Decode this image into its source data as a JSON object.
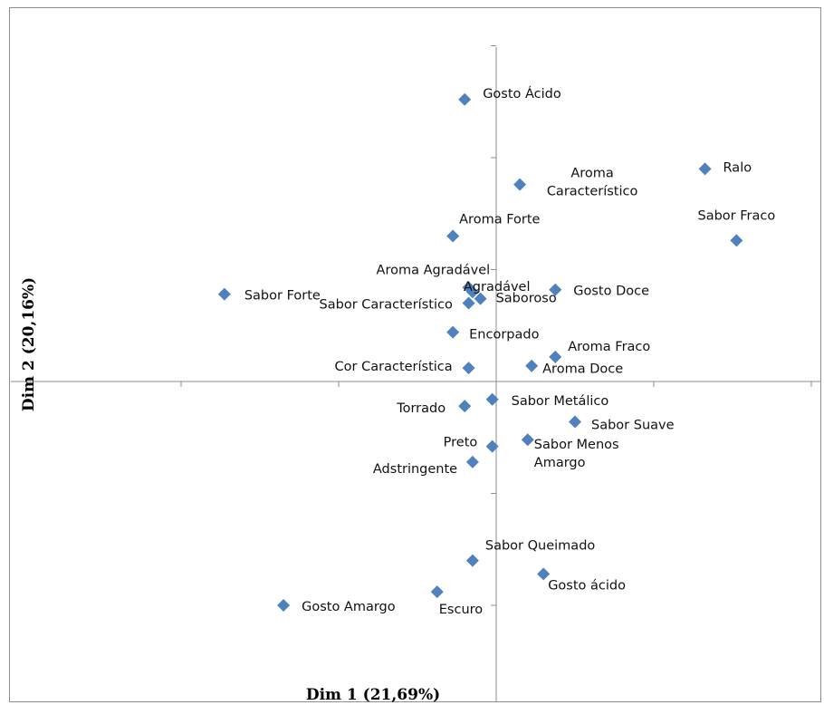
{
  "chart_data": {
    "type": "scatter",
    "xlabel": "Dim 1 (21,69%)",
    "ylabel": "Dim 2 (20,16%)",
    "series_color": "#4f81bd",
    "points": [
      {
        "label": "Gosto Ácido",
        "x": -0.08,
        "y": 1.26
      },
      {
        "label": "Aroma Característico",
        "x": 0.06,
        "y": 0.88
      },
      {
        "label": "Ralo",
        "x": 0.53,
        "y": 0.95
      },
      {
        "label": "Aroma Forte",
        "x": -0.11,
        "y": 0.65
      },
      {
        "label": "Sabor Fraco",
        "x": 0.61,
        "y": 0.63
      },
      {
        "label": "Aroma Agradável",
        "x": -0.07,
        "y": 0.42
      },
      {
        "label": "Agradável",
        "x": -0.06,
        "y": 0.4
      },
      {
        "label": "Sabor Forte",
        "x": -0.69,
        "y": 0.39
      },
      {
        "label": "Gosto Doce",
        "x": 0.15,
        "y": 0.41
      },
      {
        "label": "Saboroso",
        "x": -0.04,
        "y": 0.37
      },
      {
        "label": "Sabor Característico",
        "x": -0.07,
        "y": 0.35
      },
      {
        "label": "Encorpado",
        "x": -0.11,
        "y": 0.22
      },
      {
        "label": "Aroma Fraco",
        "x": 0.15,
        "y": 0.11
      },
      {
        "label": "Cor Característica",
        "x": -0.07,
        "y": 0.06
      },
      {
        "label": "Aroma Doce",
        "x": 0.09,
        "y": 0.07
      },
      {
        "label": "Sabor Metálico",
        "x": -0.01,
        "y": -0.08
      },
      {
        "label": "Torrado",
        "x": -0.08,
        "y": -0.11
      },
      {
        "label": "Sabor Suave",
        "x": 0.2,
        "y": -0.18
      },
      {
        "label": "Sabor Menos Amargo",
        "x": 0.08,
        "y": -0.26
      },
      {
        "label": "Preto",
        "x": -0.01,
        "y": -0.29
      },
      {
        "label": "Adstringente",
        "x": -0.06,
        "y": -0.36
      },
      {
        "label": "Sabor Queimado",
        "x": -0.06,
        "y": -0.8
      },
      {
        "label": "Gosto ácido",
        "x": 0.12,
        "y": -0.86
      },
      {
        "label": "Escuro",
        "x": -0.15,
        "y": -0.94
      },
      {
        "label": "Gosto Amargo",
        "x": -0.54,
        "y": -1.0
      }
    ],
    "xlim": [
      -1.2,
      0.8
    ],
    "ylim": [
      -1.3,
      1.5
    ],
    "grid": false,
    "legend": "none"
  }
}
